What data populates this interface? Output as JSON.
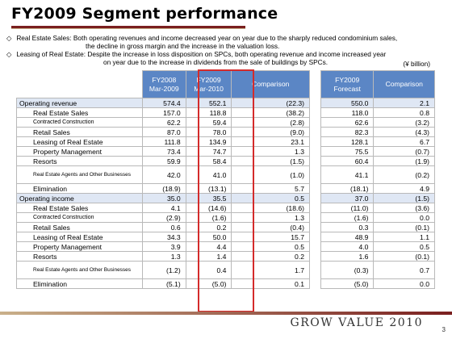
{
  "title": "FY2009 Segment performance",
  "notes": [
    {
      "mark": "◇",
      "label": "Real Estate Sales:",
      "text": "Both operating revenues and income decreased year on year due to the sharply reduced condominium sales,",
      "cont": "the decline in gross margin and the increase in the valuation loss."
    },
    {
      "mark": "◇",
      "label": "Leasing of Real Estate:",
      "text": "Despite the increase in loss disposition on SPCs, both operating revenue and income increased year",
      "cont": "on year due to the increase in dividends from the sale of buildings by SPCs."
    }
  ],
  "unit": "(¥ billion)",
  "headers": {
    "fy2008": "FY2008\nMar-2009",
    "fy2009": "FY2009\nMar-2010",
    "comparison": "Comparison",
    "forecast": "FY2009\nForecast",
    "comparison2": "Comparison"
  },
  "rows": [
    {
      "label": "Operating revenue",
      "fy2008": "574.4",
      "fy2009": "552.1",
      "cmp": "(22.3)",
      "forecast": "550.0",
      "cmp2": "2.1"
    },
    {
      "label": "Real Estate Sales",
      "fy2008": "157.0",
      "fy2009": "118.8",
      "cmp": "(38.2)",
      "forecast": "118.0",
      "cmp2": "0.8"
    },
    {
      "label": "Contracted Construction",
      "fy2008": "62.2",
      "fy2009": "59.4",
      "cmp": "(2.8)",
      "forecast": "62.6",
      "cmp2": "(3.2)"
    },
    {
      "label": "Retail Sales",
      "fy2008": "87.0",
      "fy2009": "78.0",
      "cmp": "(9.0)",
      "forecast": "82.3",
      "cmp2": "(4.3)"
    },
    {
      "label": "Leasing of Real Estate",
      "fy2008": "111.8",
      "fy2009": "134.9",
      "cmp": "23.1",
      "forecast": "128.1",
      "cmp2": "6.7"
    },
    {
      "label": "Property Management",
      "fy2008": "73.4",
      "fy2009": "74.7",
      "cmp": "1.3",
      "forecast": "75.5",
      "cmp2": "(0.7)"
    },
    {
      "label": "Resorts",
      "fy2008": "59.9",
      "fy2009": "58.4",
      "cmp": "(1.5)",
      "forecast": "60.4",
      "cmp2": "(1.9)"
    },
    {
      "label": "Real Estate Agents and Other Businesses",
      "fy2008": "42.0",
      "fy2009": "41.0",
      "cmp": "(1.0)",
      "forecast": "41.1",
      "cmp2": "(0.2)"
    },
    {
      "label": "Elimination",
      "fy2008": "(18.9)",
      "fy2009": "(13.1)",
      "cmp": "5.7",
      "forecast": "(18.1)",
      "cmp2": "4.9"
    },
    {
      "label": "Operating income",
      "fy2008": "35.0",
      "fy2009": "35.5",
      "cmp": "0.5",
      "forecast": "37.0",
      "cmp2": "(1.5)"
    },
    {
      "label": "Real Estate Sales",
      "fy2008": "4.1",
      "fy2009": "(14.6)",
      "cmp": "(18.6)",
      "forecast": "(11.0)",
      "cmp2": "(3.6)"
    },
    {
      "label": "Contracted Construction",
      "fy2008": "(2.9)",
      "fy2009": "(1.6)",
      "cmp": "1.3",
      "forecast": "(1.6)",
      "cmp2": "0.0"
    },
    {
      "label": "Retail Sales",
      "fy2008": "0.6",
      "fy2009": "0.2",
      "cmp": "(0.4)",
      "forecast": "0.3",
      "cmp2": "(0.1)"
    },
    {
      "label": "Leasing of Real Estate",
      "fy2008": "34.3",
      "fy2009": "50.0",
      "cmp": "15.7",
      "forecast": "48.9",
      "cmp2": "1.1"
    },
    {
      "label": "Property Management",
      "fy2008": "3.9",
      "fy2009": "4.4",
      "cmp": "0.5",
      "forecast": "4.0",
      "cmp2": "0.5"
    },
    {
      "label": "Resorts",
      "fy2008": "1.3",
      "fy2009": "1.4",
      "cmp": "0.2",
      "forecast": "1.6",
      "cmp2": "(0.1)"
    },
    {
      "label": "Real Estate Agents and Other Businesses",
      "fy2008": "(1.2)",
      "fy2009": "0.4",
      "cmp": "1.7",
      "forecast": "(0.3)",
      "cmp2": "0.7"
    },
    {
      "label": "Elimination",
      "fy2008": "(5.1)",
      "fy2009": "(5.0)",
      "cmp": "0.1",
      "forecast": "(5.0)",
      "cmp2": "0.0"
    }
  ],
  "footer": {
    "brand": "GROW VALUE 2010",
    "page": "3"
  }
}
